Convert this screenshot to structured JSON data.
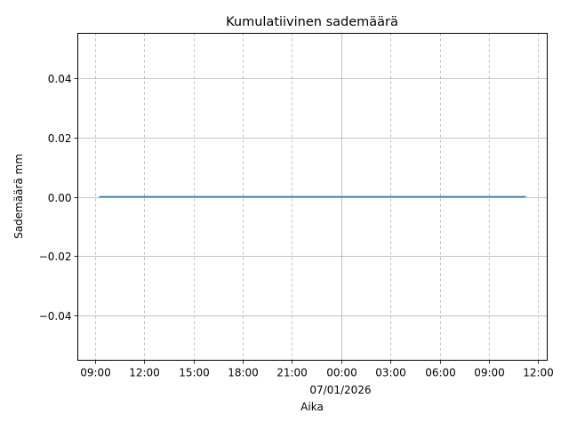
{
  "chart_data": {
    "type": "line",
    "title": "Kumulatiivinen sademäärä",
    "xlabel": "Aika",
    "ylabel": "Sademäärä mm",
    "x_offset_label": "07/01/2026",
    "xlim": [
      "2026-01-06T07:57",
      "2026-01-07T12:33"
    ],
    "ylim": [
      -0.055,
      0.055
    ],
    "x_ticks": [
      {
        "t": "2026-01-06T09:00",
        "label": "09:00"
      },
      {
        "t": "2026-01-06T12:00",
        "label": "12:00"
      },
      {
        "t": "2026-01-06T15:00",
        "label": "15:00"
      },
      {
        "t": "2026-01-06T18:00",
        "label": "18:00"
      },
      {
        "t": "2026-01-06T21:00",
        "label": "21:00"
      },
      {
        "t": "2026-01-07T00:00",
        "label": "00:00",
        "major": true
      },
      {
        "t": "2026-01-07T03:00",
        "label": "03:00"
      },
      {
        "t": "2026-01-07T06:00",
        "label": "06:00"
      },
      {
        "t": "2026-01-07T09:00",
        "label": "09:00"
      },
      {
        "t": "2026-01-07T12:00",
        "label": "12:00"
      }
    ],
    "y_ticks": [
      {
        "v": 0.04,
        "label": "0.04"
      },
      {
        "v": 0.02,
        "label": "0.02"
      },
      {
        "v": 0.0,
        "label": "0.00"
      },
      {
        "v": -0.02,
        "label": "−0.02"
      },
      {
        "v": -0.04,
        "label": "−0.04"
      }
    ],
    "grid": true,
    "series": [
      {
        "color": "#1f77b4",
        "points": [
          {
            "x": "2026-01-06T09:15",
            "y": 0
          },
          {
            "x": "2026-01-07T11:15",
            "y": 0
          }
        ]
      }
    ]
  }
}
